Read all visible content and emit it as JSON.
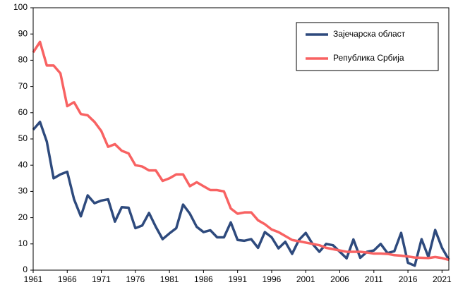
{
  "chart_data": {
    "type": "line",
    "x": [
      1961,
      1962,
      1963,
      1964,
      1965,
      1966,
      1967,
      1968,
      1969,
      1970,
      1971,
      1972,
      1973,
      1974,
      1975,
      1976,
      1977,
      1978,
      1979,
      1980,
      1981,
      1982,
      1983,
      1984,
      1985,
      1986,
      1987,
      1988,
      1989,
      1990,
      1991,
      1992,
      1993,
      1994,
      1995,
      1996,
      1997,
      1998,
      1999,
      2000,
      2001,
      2002,
      2003,
      2004,
      2005,
      2006,
      2007,
      2008,
      2009,
      2010,
      2011,
      2012,
      2013,
      2014,
      2015,
      2016,
      2017,
      2018,
      2019,
      2020,
      2021,
      2022
    ],
    "series": [
      {
        "name": "Зајечарска област",
        "color": "#2e4a7d",
        "values": [
          53.5,
          56.5,
          49,
          35,
          36.5,
          37.5,
          27,
          20.5,
          28.5,
          25.5,
          26.5,
          27,
          18.5,
          24,
          23.8,
          16,
          17,
          21.8,
          16.5,
          11.8,
          14,
          16,
          25,
          21.5,
          16.5,
          14.5,
          15.2,
          12.5,
          12.5,
          18.2,
          11.5,
          11.2,
          11.8,
          8.5,
          14.5,
          12.5,
          8.3,
          10.8,
          6.2,
          11.5,
          14.2,
          10,
          7,
          10,
          9.5,
          7,
          4.5,
          11.7,
          4.7,
          7,
          7.5,
          10,
          6.5,
          7.2,
          14.2,
          2.8,
          1.7,
          11.8,
          5,
          15.3,
          8.5,
          4
        ]
      },
      {
        "name": "Република Србија",
        "color": "#f86262",
        "values": [
          83,
          87,
          78,
          78,
          75,
          62.5,
          64,
          59.5,
          59,
          56.5,
          53,
          47,
          48,
          45.5,
          44.5,
          40,
          39.5,
          38,
          38,
          34,
          35,
          36.5,
          36.5,
          32,
          33.5,
          32,
          30.5,
          30.5,
          30,
          23.5,
          21.5,
          22,
          22,
          19,
          17.5,
          15.5,
          14.5,
          13,
          11.5,
          11,
          10.5,
          10,
          9.5,
          8.5,
          8,
          7.5,
          7,
          7,
          7,
          6.7,
          6.3,
          6.3,
          6.2,
          5.7,
          5.5,
          5.2,
          4.8,
          4.7,
          4.6,
          5,
          4.6,
          3.9
        ]
      }
    ],
    "xlim": [
      1961,
      2022
    ],
    "xticks": [
      1961,
      1966,
      1971,
      1976,
      1981,
      1986,
      1991,
      1996,
      2001,
      2006,
      2011,
      2016,
      2021
    ],
    "ylim": [
      0,
      100
    ],
    "yticks": [
      0,
      10,
      20,
      30,
      40,
      50,
      60,
      70,
      80,
      90,
      100
    ],
    "grid": false,
    "legend": "upper right"
  }
}
